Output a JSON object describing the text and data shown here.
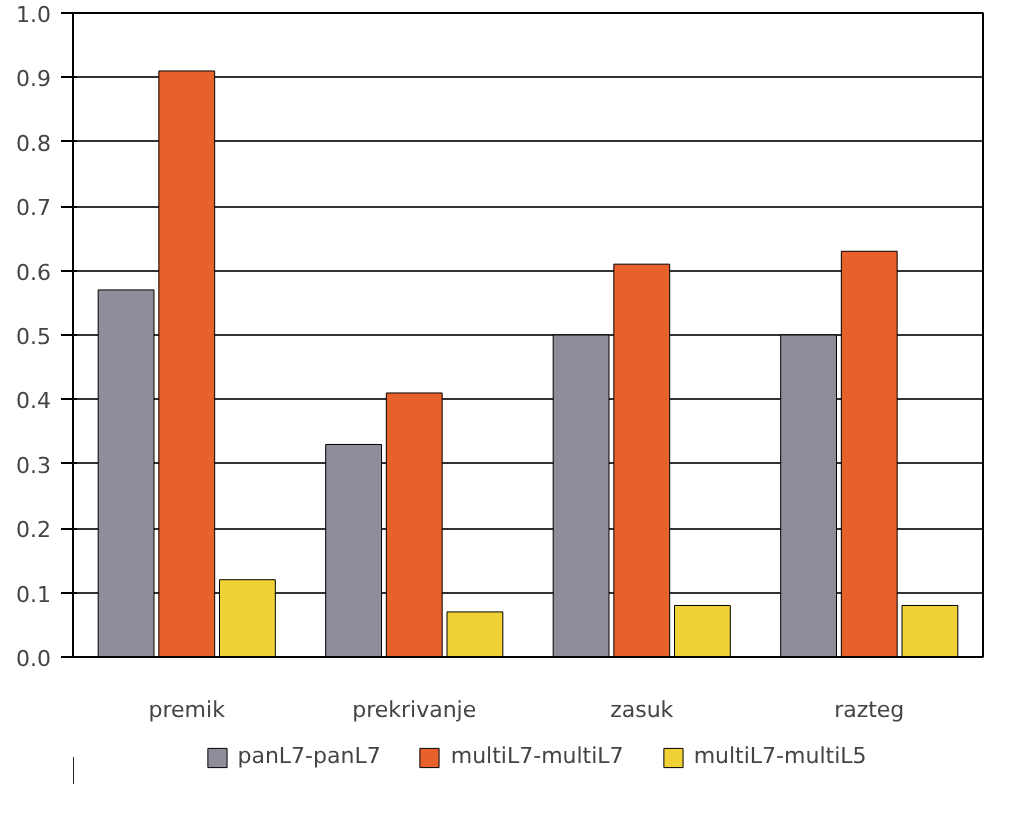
{
  "chart_data": {
    "type": "bar",
    "categories": [
      "premik",
      "prekrivanje",
      "zasuk",
      "razteg"
    ],
    "series": [
      {
        "name": "panL7-panL7",
        "color": "#8e8e9a",
        "values": [
          0.57,
          0.33,
          0.5,
          0.5
        ]
      },
      {
        "name": "multiL7-multiL7",
        "color": "#e8602a",
        "values": [
          0.91,
          0.41,
          0.61,
          0.63
        ]
      },
      {
        "name": "multiL7-multiL5",
        "color": "#f0d236",
        "values": [
          0.12,
          0.07,
          0.08,
          0.08
        ]
      }
    ],
    "ylim": [
      0,
      1.0
    ],
    "yticks": [
      {
        "value": 0,
        "label": "0.0"
      },
      {
        "value": 0.1,
        "label": "0.1"
      },
      {
        "value": 0.2,
        "label": "0.2"
      },
      {
        "value": 0.3,
        "label": "0.3"
      },
      {
        "value": 0.4,
        "label": "0.4"
      },
      {
        "value": 0.5,
        "label": "0.5"
      },
      {
        "value": 0.6,
        "label": "0.6"
      },
      {
        "value": 0.7,
        "label": "0.7"
      },
      {
        "value": 0.8,
        "label": "0.8"
      },
      {
        "value": 0.9,
        "label": "0.9"
      },
      {
        "value": 1.0,
        "label": "1.0"
      }
    ],
    "grid": "y",
    "legend": "bottom"
  }
}
